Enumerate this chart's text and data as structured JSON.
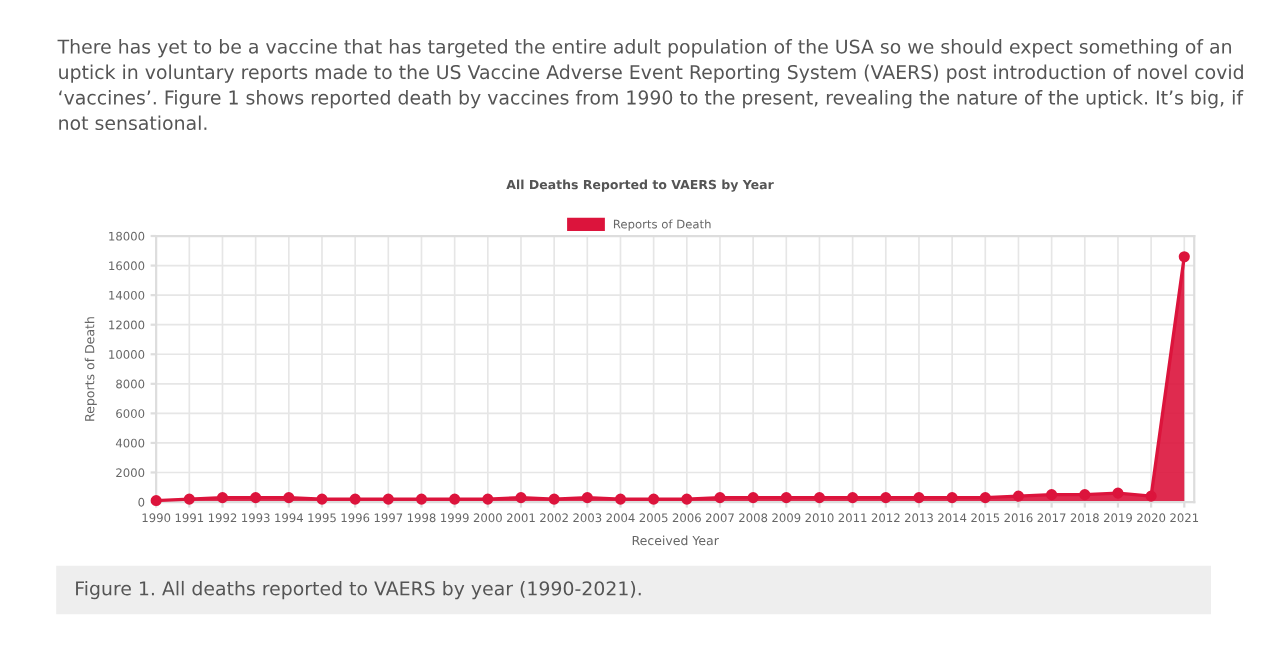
{
  "chart_data": {
    "type": "area",
    "title": "All Deaths Reported to VAERS by Year",
    "xlabel": "Received Year",
    "ylabel": "Reports of Death",
    "categories": [
      "1990",
      "1991",
      "1992",
      "1993",
      "1994",
      "1995",
      "1996",
      "1997",
      "1998",
      "1999",
      "2000",
      "2001",
      "2002",
      "2003",
      "2004",
      "2005",
      "2006",
      "2007",
      "2008",
      "2009",
      "2010",
      "2011",
      "2012",
      "2013",
      "2014",
      "2015",
      "2016",
      "2017",
      "2018",
      "2019",
      "2020",
      "2021"
    ],
    "series": [
      {
        "name": "Reports of Death",
        "color": "#dc143c",
        "values": [
          100,
          200,
          300,
          300,
          300,
          200,
          200,
          200,
          200,
          200,
          200,
          300,
          200,
          300,
          200,
          200,
          200,
          300,
          300,
          300,
          300,
          300,
          300,
          300,
          300,
          300,
          400,
          500,
          500,
          600,
          400,
          16600
        ]
      }
    ],
    "ylim": [
      0,
      18000
    ],
    "yticks": [
      0,
      2000,
      4000,
      6000,
      8000,
      10000,
      12000,
      14000,
      16000,
      18000
    ],
    "grid": true,
    "legend": "top",
    "marker": "circle",
    "annotations": [
      "There has yet to be a vaccine that has targeted the entire adult population of the USA so we should expect something of an uptick in voluntary reports made to the US Vaccine Adverse Event Reporting System (VAERS) post introduction of novel covid ‘vaccines’. Figure 1 shows reported death by vaccines from 1990 to the present, revealing the nature of the uptick. It’s big, if not sensational.",
      "Figure 1. All deaths reported to VAERS by year (1990-2021)."
    ]
  }
}
